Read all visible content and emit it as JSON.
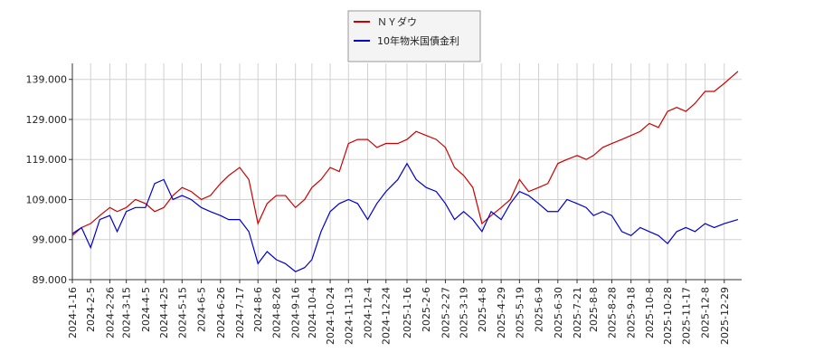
{
  "chart_data": {
    "type": "line",
    "x": [
      "2024-1-16",
      "2024-1-26",
      "2024-2-5",
      "2024-2-15",
      "2024-2-26",
      "2024-3-5",
      "2024-3-15",
      "2024-3-25",
      "2024-4-5",
      "2024-4-15",
      "2024-4-25",
      "2024-5-5",
      "2024-5-15",
      "2024-5-25",
      "2024-6-5",
      "2024-6-15",
      "2024-6-26",
      "2024-7-5",
      "2024-7-17",
      "2024-7-27",
      "2024-8-6",
      "2024-8-16",
      "2024-8-26",
      "2024-9-5",
      "2024-9-16",
      "2024-9-26",
      "2024-10-4",
      "2024-10-14",
      "2024-10-24",
      "2024-11-3",
      "2024-11-13",
      "2024-11-23",
      "2024-12-4",
      "2024-12-14",
      "2024-12-24",
      "2025-1-6",
      "2025-1-16",
      "2025-1-26",
      "2025-2-6",
      "2025-2-17",
      "2025-2-27",
      "2025-3-9",
      "2025-3-19",
      "2025-3-29",
      "2025-4-8",
      "2025-4-18",
      "2025-4-29",
      "2025-5-9",
      "2025-5-19",
      "2025-5-29",
      "2025-6-9",
      "2025-6-19",
      "2025-6-30",
      "2025-7-10",
      "2025-7-21",
      "2025-7-31",
      "2025-8-8",
      "2025-8-18",
      "2025-8-28",
      "2025-9-8",
      "2025-9-18",
      "2025-9-28",
      "2025-10-8",
      "2025-10-18",
      "2025-10-28",
      "2025-11-7",
      "2025-11-17",
      "2025-11-27",
      "2025-12-8",
      "2025-12-18",
      "2025-12-29",
      "2026-1-13"
    ],
    "series": [
      {
        "name": "ＮＹダウ",
        "color": "#cc0000",
        "values": [
          100,
          102,
          103,
          105,
          107,
          106,
          107,
          109,
          108,
          106,
          107,
          110,
          112,
          111,
          109,
          110,
          113,
          115,
          117,
          114,
          103,
          108,
          110,
          110,
          107,
          109,
          112,
          114,
          117,
          116,
          123,
          124,
          124,
          122,
          123,
          123,
          124,
          126,
          125,
          124,
          122,
          117,
          115,
          112,
          103,
          105,
          107,
          109,
          114,
          111,
          112,
          113,
          118,
          119,
          120,
          119,
          120,
          122,
          123,
          124,
          125,
          126,
          128,
          127,
          131,
          132,
          131,
          133,
          136,
          136,
          138,
          141
        ]
      },
      {
        "name": "10年物米国債金利",
        "color": "#0000cc",
        "values": [
          100.5,
          102,
          97,
          104,
          105,
          101,
          106,
          107,
          107,
          113,
          114,
          109,
          110,
          109,
          107,
          106,
          105,
          104,
          104,
          101,
          93,
          96,
          94,
          93,
          91,
          92,
          94,
          101,
          106,
          108,
          109,
          108,
          104,
          108,
          111,
          114,
          118,
          114,
          112,
          111,
          108,
          104,
          106,
          104,
          101,
          106,
          104,
          108,
          111,
          110,
          108,
          106,
          106,
          109,
          108,
          107,
          105,
          106,
          105,
          101,
          100,
          102,
          101,
          100,
          98,
          101,
          102,
          101,
          103,
          102,
          103,
          104
        ]
      }
    ],
    "xlim": [
      "2024-1-16",
      "2026-1-17"
    ],
    "xticks": [
      "2024-1-16",
      "2024-2-5",
      "2024-2-26",
      "2024-3-15",
      "2024-4-5",
      "2024-4-25",
      "2024-5-15",
      "2024-6-5",
      "2024-6-26",
      "2024-7-17",
      "2024-8-6",
      "2024-8-26",
      "2024-9-16",
      "2024-10-4",
      "2024-10-24",
      "2024-11-13",
      "2024-12-4",
      "2024-12-24",
      "2025-1-16",
      "2025-2-6",
      "2025-2-27",
      "2025-3-19",
      "2025-4-8",
      "2025-4-29",
      "2025-5-19",
      "2025-6-9",
      "2025-6-30",
      "2025-7-21",
      "2025-8-8",
      "2025-8-28",
      "2025-9-18",
      "2025-10-8",
      "2025-10-28",
      "2025-11-17",
      "2025-12-8",
      "2025-12-29"
    ],
    "ylim": [
      89,
      143
    ],
    "yticks": [
      {
        "value": 89,
        "label": "89.000"
      },
      {
        "value": 99,
        "label": "99.000"
      },
      {
        "value": 109,
        "label": "109.000"
      },
      {
        "value": 119,
        "label": "119.000"
      },
      {
        "value": 129,
        "label": "129.000"
      },
      {
        "value": 139,
        "label": "139.000"
      }
    ],
    "grid": true,
    "legend": "top"
  }
}
